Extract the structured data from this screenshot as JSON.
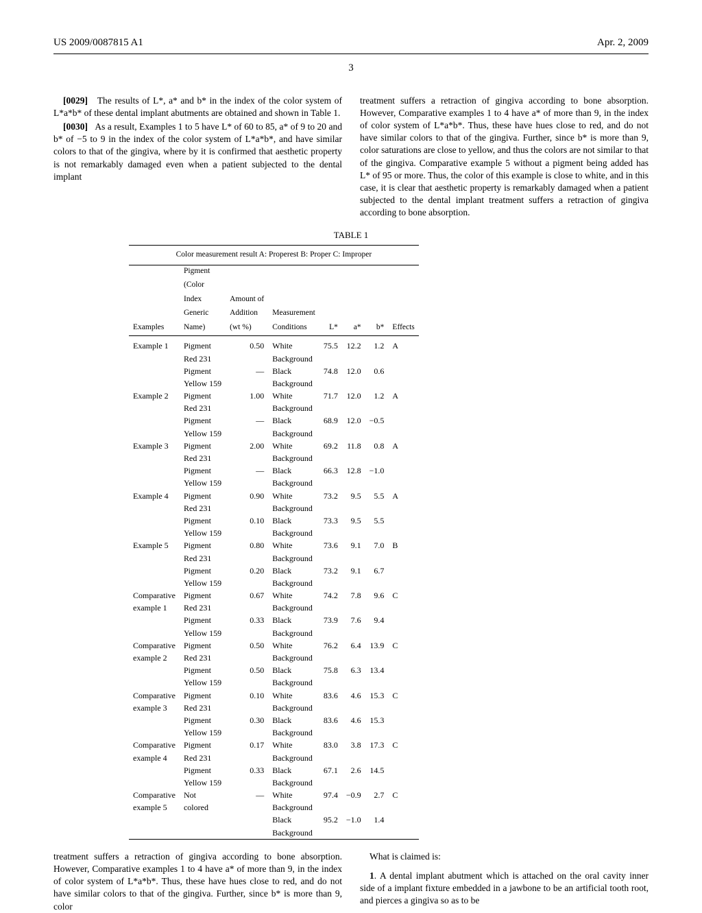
{
  "header": {
    "doc_number": "US 2009/0087815 A1",
    "date": "Apr. 2, 2009",
    "page_number": "3"
  },
  "col_left": {
    "p1": {
      "num": "[0029]",
      "text": "The results of L*, a* and b* in the index of the color system of L*a*b* of these dental implant abutments are obtained and shown in Table 1."
    },
    "p2": {
      "num": "[0030]",
      "text": "As a result, Examples 1 to 5 have L* of 60 to 85, a* of 9 to 20 and b* of −5 to 9 in the index of the color system of L*a*b*, and have similar colors to that of the gingiva, where by it is confirmed that aesthetic property is not remarkably damaged even when a patient subjected to the dental implant"
    }
  },
  "col_right": {
    "p1": "treatment suffers a retraction of gingiva according to bone absorption. However, Comparative examples 1 to 4 have a* of more than 9, in the index of color system of L*a*b*. Thus, these have hues close to red, and do not have similar colors to that of the gingiva. Further, since b* is more than 9, color saturations are close to yellow, and thus the colors are not similar to that of the gingiva. Comparative example 5 without a pigment being added has L* of 95 or more. Thus, the color of this example is close to white, and in this case, it is clear that aesthetic property is remarkably damaged when a patient subjected to the dental implant treatment suffers a retraction of gingiva according to bone absorption."
  },
  "table": {
    "title": "TABLE 1",
    "caption": "Color measurement result A: Properest B: Proper C: Improper",
    "headers": {
      "c1": "Examples",
      "c2a": "Pigment",
      "c2b": "(Color",
      "c2c": "Index",
      "c2d": "Generic",
      "c2e": "Name)",
      "c3a": "Amount of",
      "c3b": "Addition",
      "c3c": "(wt %)",
      "c4a": "Measurement",
      "c4b": "Conditions",
      "c5": "L*",
      "c6": "a*",
      "c7": "b*",
      "c8": "Effects"
    },
    "rows": [
      {
        "ex": "Example 1",
        "pig": "Pigment",
        "amt": "0.50",
        "cond": "White",
        "L": "75.5",
        "a": "12.2",
        "b": "1.2",
        "eff": "A"
      },
      {
        "ex": "",
        "pig": "Red 231",
        "amt": "",
        "cond": "Background",
        "L": "",
        "a": "",
        "b": "",
        "eff": ""
      },
      {
        "ex": "",
        "pig": "Pigment",
        "amt": "—",
        "cond": "Black",
        "L": "74.8",
        "a": "12.0",
        "b": "0.6",
        "eff": ""
      },
      {
        "ex": "",
        "pig": "Yellow 159",
        "amt": "",
        "cond": "Background",
        "L": "",
        "a": "",
        "b": "",
        "eff": ""
      },
      {
        "ex": "Example 2",
        "pig": "Pigment",
        "amt": "1.00",
        "cond": "White",
        "L": "71.7",
        "a": "12.0",
        "b": "1.2",
        "eff": "A"
      },
      {
        "ex": "",
        "pig": "Red 231",
        "amt": "",
        "cond": "Background",
        "L": "",
        "a": "",
        "b": "",
        "eff": ""
      },
      {
        "ex": "",
        "pig": "Pigment",
        "amt": "—",
        "cond": "Black",
        "L": "68.9",
        "a": "12.0",
        "b": "−0.5",
        "eff": ""
      },
      {
        "ex": "",
        "pig": "Yellow 159",
        "amt": "",
        "cond": "Background",
        "L": "",
        "a": "",
        "b": "",
        "eff": ""
      },
      {
        "ex": "Example 3",
        "pig": "Pigment",
        "amt": "2.00",
        "cond": "White",
        "L": "69.2",
        "a": "11.8",
        "b": "0.8",
        "eff": "A"
      },
      {
        "ex": "",
        "pig": "Red 231",
        "amt": "",
        "cond": "Background",
        "L": "",
        "a": "",
        "b": "",
        "eff": ""
      },
      {
        "ex": "",
        "pig": "Pigment",
        "amt": "—",
        "cond": "Black",
        "L": "66.3",
        "a": "12.8",
        "b": "−1.0",
        "eff": ""
      },
      {
        "ex": "",
        "pig": "Yellow 159",
        "amt": "",
        "cond": "Background",
        "L": "",
        "a": "",
        "b": "",
        "eff": ""
      },
      {
        "ex": "Example 4",
        "pig": "Pigment",
        "amt": "0.90",
        "cond": "White",
        "L": "73.2",
        "a": "9.5",
        "b": "5.5",
        "eff": "A"
      },
      {
        "ex": "",
        "pig": "Red 231",
        "amt": "",
        "cond": "Background",
        "L": "",
        "a": "",
        "b": "",
        "eff": ""
      },
      {
        "ex": "",
        "pig": "Pigment",
        "amt": "0.10",
        "cond": "Black",
        "L": "73.3",
        "a": "9.5",
        "b": "5.5",
        "eff": ""
      },
      {
        "ex": "",
        "pig": "Yellow 159",
        "amt": "",
        "cond": "Background",
        "L": "",
        "a": "",
        "b": "",
        "eff": ""
      },
      {
        "ex": "Example 5",
        "pig": "Pigment",
        "amt": "0.80",
        "cond": "White",
        "L": "73.6",
        "a": "9.1",
        "b": "7.0",
        "eff": "B"
      },
      {
        "ex": "",
        "pig": "Red 231",
        "amt": "",
        "cond": "Background",
        "L": "",
        "a": "",
        "b": "",
        "eff": ""
      },
      {
        "ex": "",
        "pig": "Pigment",
        "amt": "0.20",
        "cond": "Black",
        "L": "73.2",
        "a": "9.1",
        "b": "6.7",
        "eff": ""
      },
      {
        "ex": "",
        "pig": "Yellow 159",
        "amt": "",
        "cond": "Background",
        "L": "",
        "a": "",
        "b": "",
        "eff": ""
      },
      {
        "ex": "Comparative",
        "pig": "Pigment",
        "amt": "0.67",
        "cond": "White",
        "L": "74.2",
        "a": "7.8",
        "b": "9.6",
        "eff": "C"
      },
      {
        "ex": "example 1",
        "pig": "Red 231",
        "amt": "",
        "cond": "Background",
        "L": "",
        "a": "",
        "b": "",
        "eff": ""
      },
      {
        "ex": "",
        "pig": "Pigment",
        "amt": "0.33",
        "cond": "Black",
        "L": "73.9",
        "a": "7.6",
        "b": "9.4",
        "eff": ""
      },
      {
        "ex": "",
        "pig": "Yellow 159",
        "amt": "",
        "cond": "Background",
        "L": "",
        "a": "",
        "b": "",
        "eff": ""
      },
      {
        "ex": "Comparative",
        "pig": "Pigment",
        "amt": "0.50",
        "cond": "White",
        "L": "76.2",
        "a": "6.4",
        "b": "13.9",
        "eff": "C"
      },
      {
        "ex": "example 2",
        "pig": "Red 231",
        "amt": "",
        "cond": "Background",
        "L": "",
        "a": "",
        "b": "",
        "eff": ""
      },
      {
        "ex": "",
        "pig": "Pigment",
        "amt": "0.50",
        "cond": "Black",
        "L": "75.8",
        "a": "6.3",
        "b": "13.4",
        "eff": ""
      },
      {
        "ex": "",
        "pig": "Yellow 159",
        "amt": "",
        "cond": "Background",
        "L": "",
        "a": "",
        "b": "",
        "eff": ""
      },
      {
        "ex": "Comparative",
        "pig": "Pigment",
        "amt": "0.10",
        "cond": "White",
        "L": "83.6",
        "a": "4.6",
        "b": "15.3",
        "eff": "C"
      },
      {
        "ex": "example 3",
        "pig": "Red 231",
        "amt": "",
        "cond": "Background",
        "L": "",
        "a": "",
        "b": "",
        "eff": ""
      },
      {
        "ex": "",
        "pig": "Pigment",
        "amt": "0.30",
        "cond": "Black",
        "L": "83.6",
        "a": "4.6",
        "b": "15.3",
        "eff": ""
      },
      {
        "ex": "",
        "pig": "Yellow 159",
        "amt": "",
        "cond": "Background",
        "L": "",
        "a": "",
        "b": "",
        "eff": ""
      },
      {
        "ex": "Comparative",
        "pig": "Pigment",
        "amt": "0.17",
        "cond": "White",
        "L": "83.0",
        "a": "3.8",
        "b": "17.3",
        "eff": "C"
      },
      {
        "ex": "example 4",
        "pig": "Red 231",
        "amt": "",
        "cond": "Background",
        "L": "",
        "a": "",
        "b": "",
        "eff": ""
      },
      {
        "ex": "",
        "pig": "Pigment",
        "amt": "0.33",
        "cond": "Black",
        "L": "67.1",
        "a": "2.6",
        "b": "14.5",
        "eff": ""
      },
      {
        "ex": "",
        "pig": "Yellow 159",
        "amt": "",
        "cond": "Background",
        "L": "",
        "a": "",
        "b": "",
        "eff": ""
      },
      {
        "ex": "Comparative",
        "pig": "Not",
        "amt": "—",
        "cond": "White",
        "L": "97.4",
        "a": "−0.9",
        "b": "2.7",
        "eff": "C"
      },
      {
        "ex": "example 5",
        "pig": "colored",
        "amt": "",
        "cond": "Background",
        "L": "",
        "a": "",
        "b": "",
        "eff": ""
      },
      {
        "ex": "",
        "pig": "",
        "amt": "",
        "cond": "Black",
        "L": "95.2",
        "a": "−1.0",
        "b": "1.4",
        "eff": ""
      },
      {
        "ex": "",
        "pig": "",
        "amt": "",
        "cond": "Background",
        "L": "",
        "a": "",
        "b": "",
        "eff": ""
      }
    ]
  },
  "bottom_left": "treatment suffers a retraction of gingiva according to bone absorption. However, Comparative examples 1 to 4 have a* of more than 9, in the index of color system of L*a*b*. Thus, these have hues close to red, and do not have similar colors to that of the gingiva. Further, since b* is more than 9, color",
  "bottom_right": {
    "claims_intro": "What is claimed is:",
    "claim1_num": "1",
    "claim1": ". A dental implant abutment which is attached on the oral cavity inner side of a implant fixture embedded in a jawbone to be an artificial tooth root, and pierces a gingiva so as to be"
  }
}
